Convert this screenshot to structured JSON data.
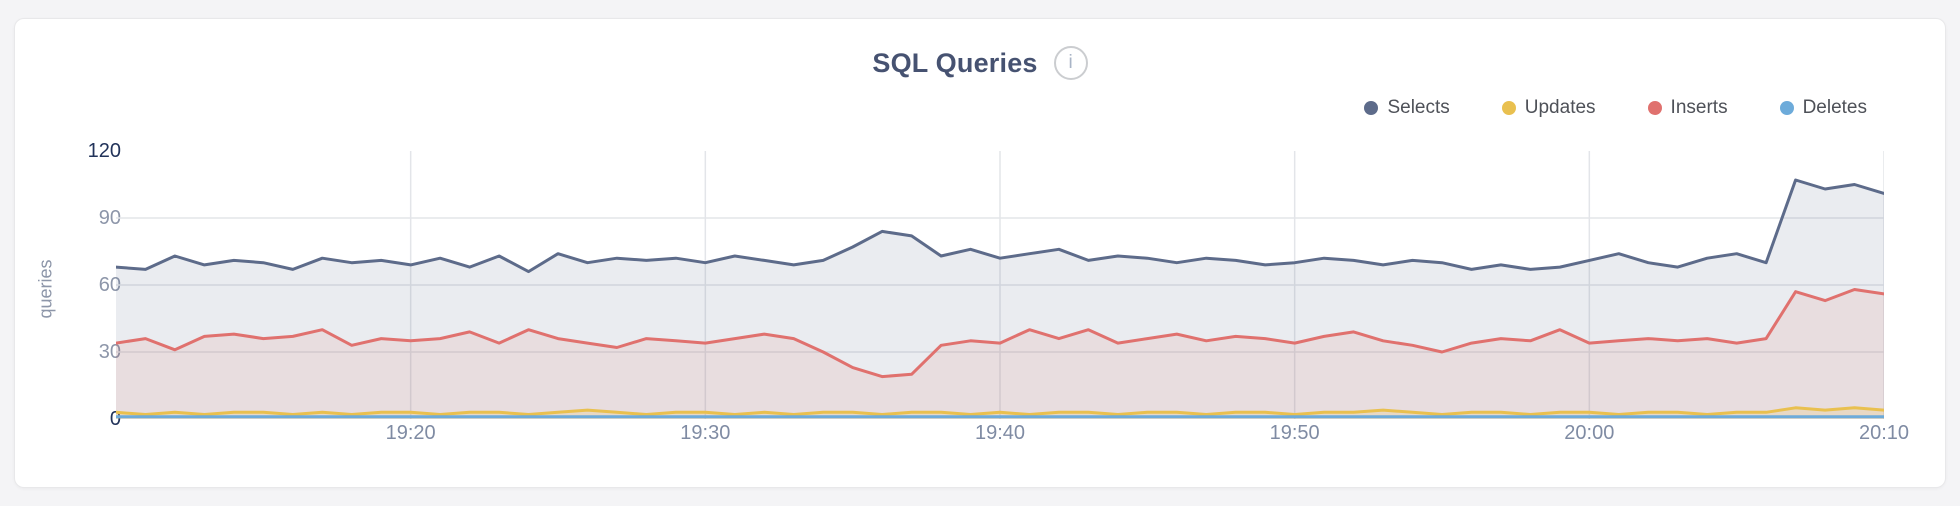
{
  "card": {
    "title": "SQL Queries",
    "info_icon": "i"
  },
  "legend": [
    {
      "label": "Selects",
      "color": "#5d6b8a"
    },
    {
      "label": "Updates",
      "color": "#e9c04f"
    },
    {
      "label": "Inserts",
      "color": "#e0716e"
    },
    {
      "label": "Deletes",
      "color": "#6dabda"
    }
  ],
  "chart_data": {
    "type": "area",
    "title": "SQL Queries",
    "xlabel": "",
    "ylabel": "queries",
    "ylim": [
      0,
      120
    ],
    "y_ticks": [
      120,
      90,
      60,
      30,
      0
    ],
    "y_ticks_emphasized": [
      120,
      0
    ],
    "x_tick_labels": [
      "19:20",
      "19:30",
      "19:40",
      "19:50",
      "20:00",
      "20:10"
    ],
    "x_tick_indices": [
      10,
      20,
      30,
      40,
      50,
      60
    ],
    "x_start": "19:10",
    "x_end": "20:10",
    "x_interval_minutes": 1,
    "grid": true,
    "legend_position": "top-right",
    "grid_color": "#e3e5e9",
    "series": [
      {
        "name": "Selects",
        "color": "#5d6b8a",
        "fill_opacity": 0.13,
        "values": [
          68,
          67,
          73,
          69,
          71,
          70,
          67,
          72,
          70,
          71,
          69,
          72,
          68,
          73,
          66,
          74,
          70,
          72,
          71,
          72,
          70,
          73,
          71,
          69,
          71,
          77,
          84,
          82,
          73,
          76,
          72,
          74,
          76,
          71,
          73,
          72,
          70,
          72,
          71,
          69,
          70,
          72,
          71,
          69,
          71,
          70,
          67,
          69,
          67,
          68,
          71,
          74,
          70,
          68,
          72,
          74,
          70,
          107,
          103,
          105,
          101
        ]
      },
      {
        "name": "Inserts",
        "color": "#e0716e",
        "fill_opacity": 0.12,
        "values": [
          34,
          36,
          31,
          37,
          38,
          36,
          37,
          40,
          33,
          36,
          35,
          36,
          39,
          34,
          40,
          36,
          34,
          32,
          36,
          35,
          34,
          36,
          38,
          36,
          30,
          23,
          19,
          20,
          33,
          35,
          34,
          40,
          36,
          40,
          34,
          36,
          38,
          35,
          37,
          36,
          34,
          37,
          39,
          35,
          33,
          30,
          34,
          36,
          35,
          40,
          34,
          35,
          36,
          35,
          36,
          34,
          36,
          57,
          53,
          58,
          56
        ]
      },
      {
        "name": "Updates",
        "color": "#e9c04f",
        "fill_opacity": 0.18,
        "values": [
          3,
          2,
          3,
          2,
          3,
          3,
          2,
          3,
          2,
          3,
          3,
          2,
          3,
          3,
          2,
          3,
          4,
          3,
          2,
          3,
          3,
          2,
          3,
          2,
          3,
          3,
          2,
          3,
          3,
          2,
          3,
          2,
          3,
          3,
          2,
          3,
          3,
          2,
          3,
          3,
          2,
          3,
          3,
          4,
          3,
          2,
          3,
          3,
          2,
          3,
          3,
          2,
          3,
          3,
          2,
          3,
          3,
          5,
          4,
          5,
          4
        ]
      },
      {
        "name": "Deletes",
        "color": "#6dabda",
        "fill_opacity": 0,
        "values": [
          1,
          1,
          1,
          1,
          1,
          1,
          1,
          1,
          1,
          1,
          1,
          1,
          1,
          1,
          1,
          1,
          1,
          1,
          1,
          1,
          1,
          1,
          1,
          1,
          1,
          1,
          1,
          1,
          1,
          1,
          1,
          1,
          1,
          1,
          1,
          1,
          1,
          1,
          1,
          1,
          1,
          1,
          1,
          1,
          1,
          1,
          1,
          1,
          1,
          1,
          1,
          1,
          1,
          1,
          1,
          1,
          1,
          1,
          1,
          1,
          1
        ]
      }
    ]
  }
}
